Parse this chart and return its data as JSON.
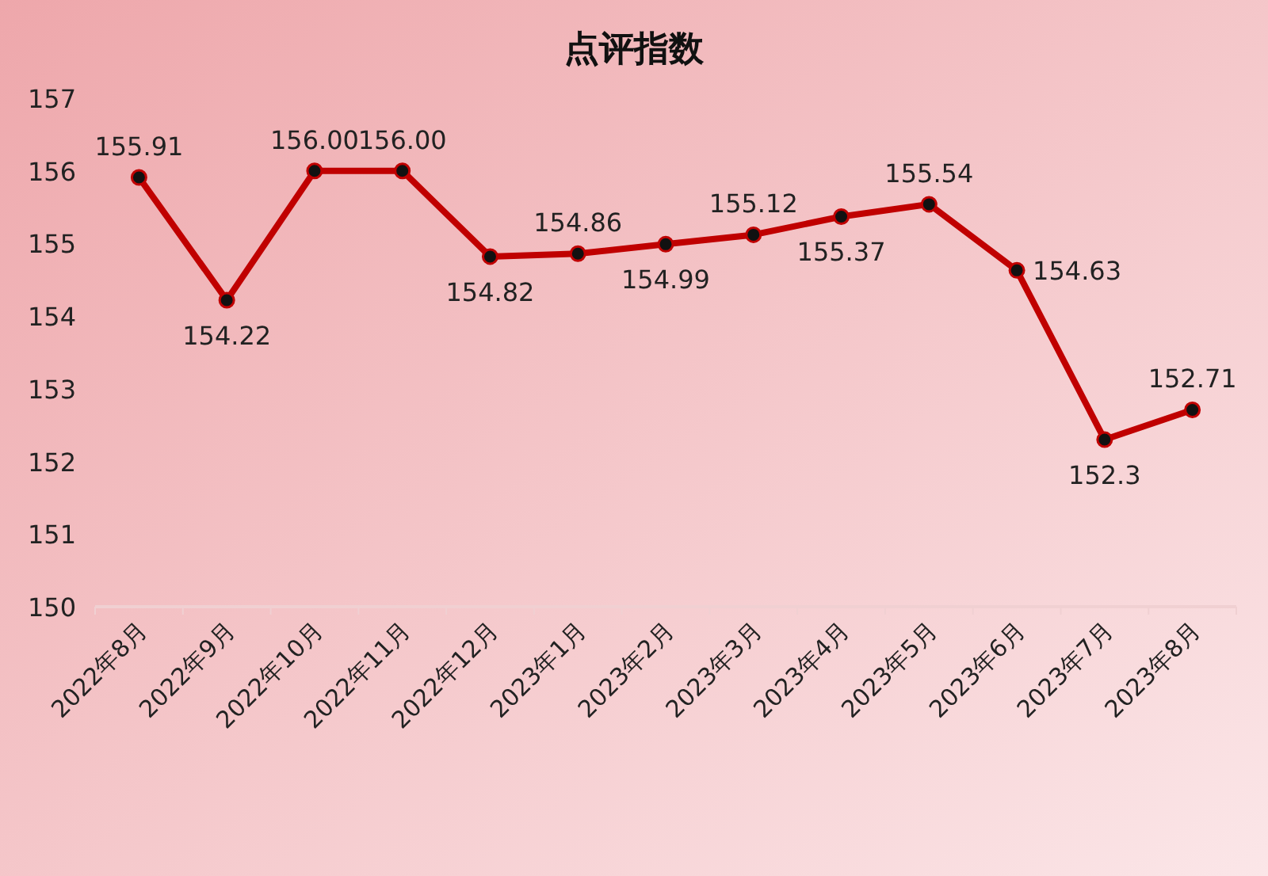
{
  "chart_data": {
    "type": "line",
    "title": "点评指数",
    "categories": [
      "2022年8月",
      "2022年9月",
      "2022年10月",
      "2022年11月",
      "2022年12月",
      "2023年1月",
      "2023年2月",
      "2023年3月",
      "2023年4月",
      "2023年5月",
      "2023年6月",
      "2023年7月",
      "2023年8月"
    ],
    "series": [
      {
        "color": "#c00000",
        "values": [
          155.91,
          154.22,
          156.0,
          156.0,
          154.82,
          154.86,
          154.99,
          155.12,
          155.37,
          155.54,
          154.63,
          152.3,
          152.71
        ],
        "value_labels": [
          "155.91",
          "154.22",
          "156.00",
          "156.00",
          "154.82",
          "154.86",
          "154.99",
          "155.12",
          "155.37",
          "155.54",
          "154.63",
          "152.3",
          "152.71"
        ]
      }
    ],
    "ylim": [
      150,
      157
    ],
    "yticks": [
      150,
      151,
      152,
      153,
      154,
      155,
      156,
      157
    ],
    "marker": "circle",
    "line_style": "solid",
    "grid": false
  }
}
